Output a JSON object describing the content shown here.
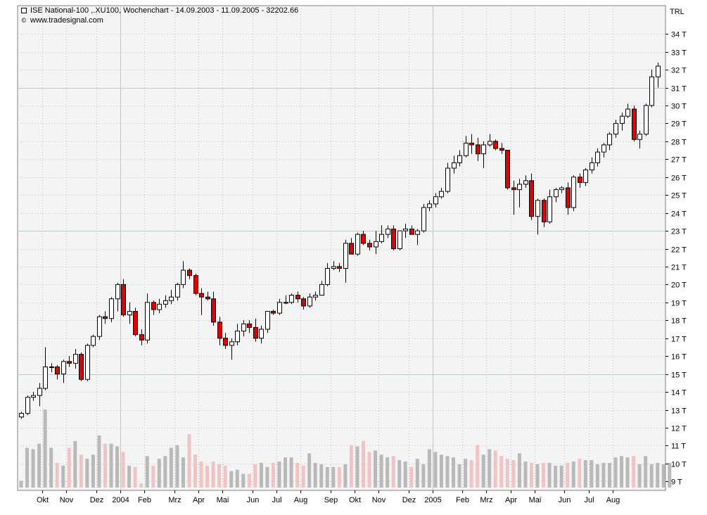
{
  "header": {
    "title": "ISE National-100 ,.XU100, Wochenchart - 14.09.2003 - 11.09.2005 - 32202.66",
    "copyright_symbol": "©",
    "source": "www.tradesignal.com",
    "currency": "TRL"
  },
  "colors": {
    "up_candle_fill": "#ffffff",
    "down_candle_fill": "#e00000",
    "candle_outline": "#000000",
    "volume_up": "#b9b9b9",
    "volume_down": "#f0c4c4",
    "plot_background": "#f4f4f4",
    "major_grid": "#b8cdb8",
    "minor_grid": "#c0c0c0"
  },
  "chart_data": [
    {
      "type": "candlestick",
      "title": "ISE National-100 ,.XU100, Wochenchart - 14.09.2003 - 11.09.2005 - 32202.66",
      "ylabel": "TRL",
      "ylim": [
        8500,
        35500
      ],
      "y_ticks": [
        9000,
        10000,
        11000,
        12000,
        13000,
        14000,
        15000,
        16000,
        17000,
        18000,
        19000,
        20000,
        21000,
        22000,
        23000,
        24000,
        25000,
        26000,
        27000,
        28000,
        29000,
        30000,
        31000,
        32000,
        33000,
        34000
      ],
      "y_tick_labels": [
        "9 T",
        "10 T",
        "11 T",
        "12 T",
        "13 T",
        "14 T",
        "15 T",
        "16 T",
        "17 T",
        "18 T",
        "19 T",
        "20 T",
        "21 T",
        "22 T",
        "23 T",
        "24 T",
        "25 T",
        "26 T",
        "27 T",
        "28 T",
        "29 T",
        "30 T",
        "31 T",
        "32 T",
        "33 T",
        "34 T"
      ],
      "major_gridlines_y": [
        15000,
        23000,
        31000
      ],
      "x_tick_labels": [
        {
          "label": "Okt",
          "week": 4
        },
        {
          "label": "Nov",
          "week": 8
        },
        {
          "label": "Dez",
          "week": 13
        },
        {
          "label": "2004",
          "week": 17
        },
        {
          "label": "Feb",
          "week": 21
        },
        {
          "label": "Mrz",
          "week": 26
        },
        {
          "label": "Apr",
          "week": 30
        },
        {
          "label": "Mai",
          "week": 34
        },
        {
          "label": "Jun",
          "week": 39
        },
        {
          "label": "Jul",
          "week": 43
        },
        {
          "label": "Aug",
          "week": 47
        },
        {
          "label": "Sep",
          "week": 52
        },
        {
          "label": "Okt",
          "week": 56
        },
        {
          "label": "Nov",
          "week": 60
        },
        {
          "label": "Dez",
          "week": 65
        },
        {
          "label": "2005",
          "week": 69
        },
        {
          "label": "Feb",
          "week": 74
        },
        {
          "label": "Mrz",
          "week": 78
        },
        {
          "label": "Apr",
          "week": 82
        },
        {
          "label": "Mai",
          "week": 86
        },
        {
          "label": "Jun",
          "week": 91
        },
        {
          "label": "Jul",
          "week": 95
        },
        {
          "label": "Aug",
          "week": 99
        }
      ],
      "major_gridlines_x_weeks": [
        17,
        69
      ],
      "candles": [
        {
          "o": 12600,
          "h": 12900,
          "l": 12500,
          "c": 12800
        },
        {
          "o": 12800,
          "h": 13800,
          "l": 12700,
          "c": 13700
        },
        {
          "o": 13700,
          "h": 14000,
          "l": 13500,
          "c": 13800
        },
        {
          "o": 13800,
          "h": 14500,
          "l": 13200,
          "c": 14200
        },
        {
          "o": 14200,
          "h": 16500,
          "l": 14100,
          "c": 15400
        },
        {
          "o": 15400,
          "h": 15600,
          "l": 15100,
          "c": 15400
        },
        {
          "o": 15400,
          "h": 15500,
          "l": 14700,
          "c": 15000
        },
        {
          "o": 15000,
          "h": 15800,
          "l": 14500,
          "c": 15700
        },
        {
          "o": 15700,
          "h": 16000,
          "l": 15400,
          "c": 15600
        },
        {
          "o": 15600,
          "h": 16400,
          "l": 15300,
          "c": 16100
        },
        {
          "o": 16100,
          "h": 16200,
          "l": 14600,
          "c": 14700
        },
        {
          "o": 14700,
          "h": 16700,
          "l": 14600,
          "c": 16600
        },
        {
          "o": 16600,
          "h": 17200,
          "l": 16500,
          "c": 17100
        },
        {
          "o": 17100,
          "h": 18300,
          "l": 16900,
          "c": 18200
        },
        {
          "o": 18200,
          "h": 18500,
          "l": 17800,
          "c": 18100
        },
        {
          "o": 18100,
          "h": 19300,
          "l": 17900,
          "c": 19200
        },
        {
          "o": 19200,
          "h": 20100,
          "l": 18500,
          "c": 20000
        },
        {
          "o": 20000,
          "h": 20300,
          "l": 18200,
          "c": 18300
        },
        {
          "o": 18300,
          "h": 19000,
          "l": 17800,
          "c": 18500
        },
        {
          "o": 18500,
          "h": 18700,
          "l": 17100,
          "c": 17200
        },
        {
          "o": 17200,
          "h": 17500,
          "l": 16600,
          "c": 16900
        },
        {
          "o": 16900,
          "h": 19500,
          "l": 16700,
          "c": 19000
        },
        {
          "o": 19000,
          "h": 19100,
          "l": 18300,
          "c": 18600
        },
        {
          "o": 18600,
          "h": 19200,
          "l": 18400,
          "c": 18900
        },
        {
          "o": 18900,
          "h": 19400,
          "l": 18700,
          "c": 19100
        },
        {
          "o": 19100,
          "h": 19700,
          "l": 18900,
          "c": 19300
        },
        {
          "o": 19300,
          "h": 20100,
          "l": 19100,
          "c": 20000
        },
        {
          "o": 20000,
          "h": 21300,
          "l": 19800,
          "c": 20800
        },
        {
          "o": 20800,
          "h": 20900,
          "l": 20300,
          "c": 20500
        },
        {
          "o": 20500,
          "h": 20600,
          "l": 19400,
          "c": 19500
        },
        {
          "o": 19500,
          "h": 19800,
          "l": 18300,
          "c": 19300
        },
        {
          "o": 19300,
          "h": 19600,
          "l": 19100,
          "c": 19200
        },
        {
          "o": 19200,
          "h": 19600,
          "l": 17700,
          "c": 17900
        },
        {
          "o": 17900,
          "h": 18200,
          "l": 16600,
          "c": 17000
        },
        {
          "o": 17000,
          "h": 17300,
          "l": 16400,
          "c": 16600
        },
        {
          "o": 16600,
          "h": 17000,
          "l": 15800,
          "c": 16800
        },
        {
          "o": 16800,
          "h": 17800,
          "l": 16600,
          "c": 17400
        },
        {
          "o": 17400,
          "h": 18000,
          "l": 17100,
          "c": 17800
        },
        {
          "o": 17800,
          "h": 18000,
          "l": 17300,
          "c": 17600
        },
        {
          "o": 17600,
          "h": 18100,
          "l": 16800,
          "c": 17000
        },
        {
          "o": 17000,
          "h": 17700,
          "l": 16700,
          "c": 17500
        },
        {
          "o": 17500,
          "h": 18400,
          "l": 17300,
          "c": 18500
        },
        {
          "o": 18500,
          "h": 18600,
          "l": 18300,
          "c": 18400
        },
        {
          "o": 18400,
          "h": 19200,
          "l": 18300,
          "c": 19000
        },
        {
          "o": 19000,
          "h": 19400,
          "l": 18900,
          "c": 19000
        },
        {
          "o": 19000,
          "h": 19500,
          "l": 18900,
          "c": 19400
        },
        {
          "o": 19400,
          "h": 19600,
          "l": 19000,
          "c": 19200
        },
        {
          "o": 19200,
          "h": 19300,
          "l": 18600,
          "c": 18800
        },
        {
          "o": 18800,
          "h": 19500,
          "l": 18700,
          "c": 19300
        },
        {
          "o": 19300,
          "h": 19600,
          "l": 19100,
          "c": 19400
        },
        {
          "o": 19400,
          "h": 20200,
          "l": 19400,
          "c": 20000
        },
        {
          "o": 20000,
          "h": 21200,
          "l": 19900,
          "c": 20900
        },
        {
          "o": 20900,
          "h": 21300,
          "l": 20800,
          "c": 21000
        },
        {
          "o": 21000,
          "h": 21200,
          "l": 20700,
          "c": 20900
        },
        {
          "o": 20900,
          "h": 22500,
          "l": 20100,
          "c": 22300
        },
        {
          "o": 22300,
          "h": 22600,
          "l": 21800,
          "c": 21700
        },
        {
          "o": 21700,
          "h": 22900,
          "l": 21600,
          "c": 22800
        },
        {
          "o": 22800,
          "h": 23000,
          "l": 22200,
          "c": 22300
        },
        {
          "o": 22300,
          "h": 22500,
          "l": 21900,
          "c": 22100
        },
        {
          "o": 22100,
          "h": 23000,
          "l": 21700,
          "c": 22400
        },
        {
          "o": 22400,
          "h": 23300,
          "l": 22300,
          "c": 22800
        },
        {
          "o": 22800,
          "h": 23300,
          "l": 22600,
          "c": 23100
        },
        {
          "o": 23100,
          "h": 23300,
          "l": 21900,
          "c": 22000
        },
        {
          "o": 22000,
          "h": 23000,
          "l": 21900,
          "c": 23000
        },
        {
          "o": 23000,
          "h": 23400,
          "l": 22600,
          "c": 23100
        },
        {
          "o": 23100,
          "h": 23300,
          "l": 22800,
          "c": 22800
        },
        {
          "o": 22800,
          "h": 23100,
          "l": 22200,
          "c": 23000
        },
        {
          "o": 23000,
          "h": 24500,
          "l": 22900,
          "c": 24300
        },
        {
          "o": 24300,
          "h": 24700,
          "l": 24100,
          "c": 24500
        },
        {
          "o": 24500,
          "h": 25100,
          "l": 24300,
          "c": 24900
        },
        {
          "o": 24900,
          "h": 25400,
          "l": 24800,
          "c": 25200
        },
        {
          "o": 25200,
          "h": 26800,
          "l": 25100,
          "c": 26500
        },
        {
          "o": 26500,
          "h": 27200,
          "l": 26200,
          "c": 26800
        },
        {
          "o": 26800,
          "h": 27500,
          "l": 26600,
          "c": 27200
        },
        {
          "o": 27200,
          "h": 28300,
          "l": 27100,
          "c": 27900
        },
        {
          "o": 27900,
          "h": 28400,
          "l": 27300,
          "c": 27800
        },
        {
          "o": 27800,
          "h": 28200,
          "l": 26900,
          "c": 27300
        },
        {
          "o": 27300,
          "h": 28000,
          "l": 26500,
          "c": 27800
        },
        {
          "o": 27800,
          "h": 28400,
          "l": 27700,
          "c": 28000
        },
        {
          "o": 28000,
          "h": 28100,
          "l": 27500,
          "c": 27600
        },
        {
          "o": 27600,
          "h": 27900,
          "l": 27300,
          "c": 27500
        },
        {
          "o": 27500,
          "h": 27500,
          "l": 25300,
          "c": 25400
        },
        {
          "o": 25400,
          "h": 25800,
          "l": 23900,
          "c": 25300
        },
        {
          "o": 25300,
          "h": 25900,
          "l": 24300,
          "c": 25600
        },
        {
          "o": 25600,
          "h": 26100,
          "l": 25400,
          "c": 25800
        },
        {
          "o": 25800,
          "h": 26200,
          "l": 23600,
          "c": 23800
        },
        {
          "o": 23800,
          "h": 24800,
          "l": 22800,
          "c": 24700
        },
        {
          "o": 24700,
          "h": 24800,
          "l": 23200,
          "c": 23500
        },
        {
          "o": 23500,
          "h": 25300,
          "l": 23400,
          "c": 24900
        },
        {
          "o": 24900,
          "h": 25400,
          "l": 24600,
          "c": 25300
        },
        {
          "o": 25300,
          "h": 25500,
          "l": 25100,
          "c": 25400
        },
        {
          "o": 25400,
          "h": 25700,
          "l": 23900,
          "c": 24300
        },
        {
          "o": 24300,
          "h": 26100,
          "l": 24100,
          "c": 26000
        },
        {
          "o": 26000,
          "h": 26200,
          "l": 25400,
          "c": 25700
        },
        {
          "o": 25700,
          "h": 26500,
          "l": 25500,
          "c": 26400
        },
        {
          "o": 26400,
          "h": 27100,
          "l": 26200,
          "c": 26800
        },
        {
          "o": 26800,
          "h": 27600,
          "l": 26600,
          "c": 27400
        },
        {
          "o": 27400,
          "h": 27900,
          "l": 27100,
          "c": 27800
        },
        {
          "o": 27800,
          "h": 28500,
          "l": 27500,
          "c": 28400
        },
        {
          "o": 28400,
          "h": 29200,
          "l": 28200,
          "c": 29000
        },
        {
          "o": 29000,
          "h": 29600,
          "l": 28600,
          "c": 29400
        },
        {
          "o": 29400,
          "h": 30100,
          "l": 29300,
          "c": 29800
        },
        {
          "o": 29800,
          "h": 30000,
          "l": 28000,
          "c": 28100
        },
        {
          "o": 28100,
          "h": 28600,
          "l": 27600,
          "c": 28400
        },
        {
          "o": 28400,
          "h": 30100,
          "l": 28300,
          "c": 30000
        },
        {
          "o": 30000,
          "h": 32000,
          "l": 29900,
          "c": 31600
        },
        {
          "o": 31600,
          "h": 32400,
          "l": 31000,
          "c": 32200
        }
      ],
      "volume_scale_ylim": [
        8600,
        14400
      ],
      "volume": [
        9100,
        11500,
        11400,
        11800,
        14300,
        11500,
        10400,
        10200,
        11500,
        12000,
        11000,
        10700,
        11000,
        12400,
        11800,
        11800,
        11600,
        11200,
        10200,
        10100,
        8900,
        10900,
        10200,
        10700,
        10900,
        11500,
        11700,
        10800,
        12500,
        11000,
        10500,
        10200,
        10500,
        10300,
        10200,
        9800,
        9900,
        9600,
        9600,
        10300,
        10400,
        10100,
        10400,
        10500,
        10800,
        10800,
        10400,
        10200,
        11100,
        10400,
        10300,
        10100,
        10100,
        10100,
        10300,
        11700,
        11600,
        12000,
        11200,
        11300,
        11000,
        10800,
        10900,
        10600,
        10500,
        10100,
        10700,
        10300,
        11400,
        11200,
        11000,
        10900,
        10800,
        10300,
        10700,
        10600,
        11700,
        11000,
        11400,
        11300,
        10900,
        10700,
        10600,
        11100,
        10500,
        10400,
        10300,
        10400,
        10400,
        10200,
        10200,
        10400,
        10500,
        10700,
        10600,
        10600,
        10300,
        10400,
        10400,
        10800,
        10900,
        10800,
        10900,
        10300,
        10900,
        10300,
        10400,
        10300,
        10400
      ]
    }
  ]
}
